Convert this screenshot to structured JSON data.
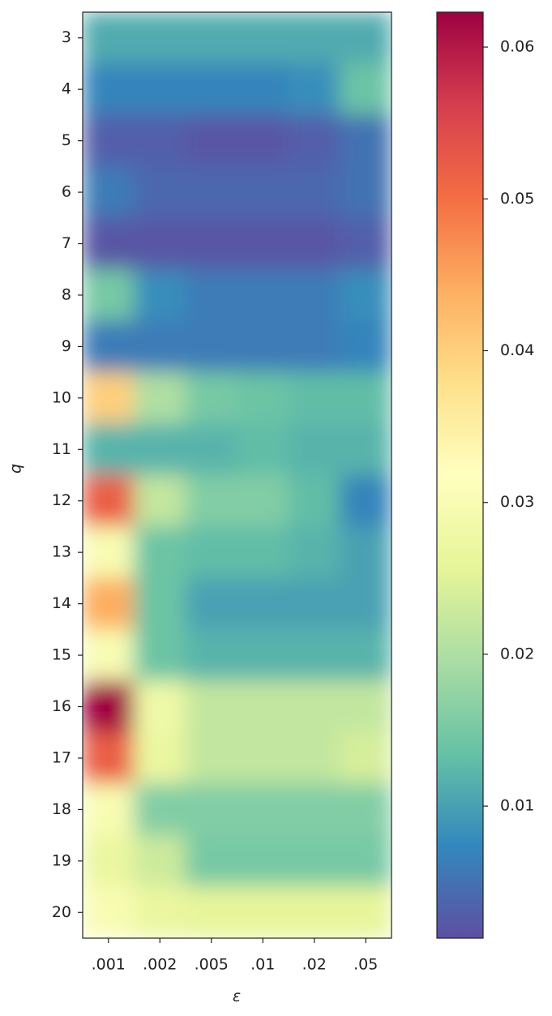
{
  "chart_data": {
    "type": "heatmap",
    "x_label": "ε",
    "y_label": "q",
    "x_categories": [
      ".001",
      ".002",
      ".005",
      ".01",
      ".02",
      ".05"
    ],
    "y_categories": [
      3,
      4,
      5,
      6,
      7,
      8,
      9,
      10,
      11,
      12,
      13,
      14,
      15,
      16,
      17,
      18,
      19,
      20
    ],
    "values": [
      [
        0.011,
        0.011,
        0.011,
        0.011,
        0.011,
        0.011
      ],
      [
        0.007,
        0.007,
        0.007,
        0.007,
        0.008,
        0.014
      ],
      [
        0.003,
        0.003,
        0.002,
        0.002,
        0.003,
        0.005
      ],
      [
        0.006,
        0.004,
        0.004,
        0.004,
        0.004,
        0.005
      ],
      [
        0.002,
        0.002,
        0.002,
        0.002,
        0.002,
        0.003
      ],
      [
        0.015,
        0.008,
        0.006,
        0.006,
        0.006,
        0.008
      ],
      [
        0.006,
        0.006,
        0.006,
        0.006,
        0.006,
        0.007
      ],
      [
        0.04,
        0.02,
        0.015,
        0.014,
        0.013,
        0.013
      ],
      [
        0.012,
        0.012,
        0.012,
        0.013,
        0.012,
        0.012
      ],
      [
        0.052,
        0.022,
        0.016,
        0.016,
        0.013,
        0.007
      ],
      [
        0.03,
        0.014,
        0.013,
        0.013,
        0.012,
        0.01
      ],
      [
        0.044,
        0.014,
        0.01,
        0.01,
        0.01,
        0.01
      ],
      [
        0.03,
        0.014,
        0.012,
        0.012,
        0.012,
        0.012
      ],
      [
        0.062,
        0.028,
        0.022,
        0.022,
        0.022,
        0.022
      ],
      [
        0.052,
        0.027,
        0.022,
        0.022,
        0.022,
        0.024
      ],
      [
        0.03,
        0.016,
        0.016,
        0.016,
        0.016,
        0.016
      ],
      [
        0.027,
        0.023,
        0.015,
        0.015,
        0.015,
        0.015
      ],
      [
        0.03,
        0.027,
        0.026,
        0.026,
        0.026,
        0.026
      ]
    ],
    "colormap": [
      "#5e4fa2",
      "#3288bd",
      "#66c2a5",
      "#abdda4",
      "#e6f598",
      "#ffffbf",
      "#fee08b",
      "#fdae61",
      "#f46d43",
      "#d53e4f",
      "#9e0142"
    ],
    "clim": [
      0.0013,
      0.0623
    ],
    "cticks": [
      0.01,
      0.02,
      0.03,
      0.04,
      0.05,
      0.06
    ]
  }
}
